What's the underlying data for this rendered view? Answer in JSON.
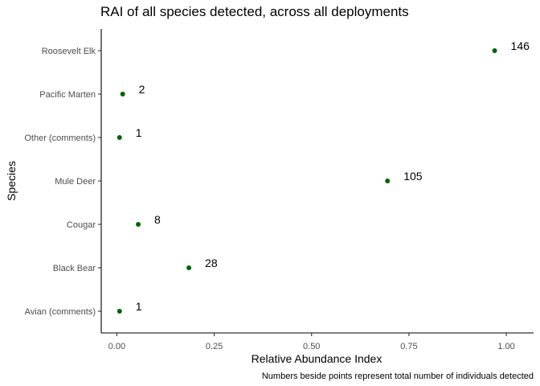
{
  "chart_data": {
    "type": "scatter",
    "title": "RAI of all species detected, across all deployments",
    "xlabel": "Relative Abundance Index",
    "ylabel": "Species",
    "caption": "Numbers beside points represent total number of individuals detected",
    "xlim": [
      -0.04,
      1.07
    ],
    "xticks": [
      0.0,
      0.25,
      0.5,
      0.75,
      1.0
    ],
    "xtick_labels": [
      "0.00",
      "0.25",
      "0.50",
      "0.75",
      "1.00"
    ],
    "grid": false,
    "point_color": "#006400",
    "categories": [
      "Avian (comments)",
      "Black Bear",
      "Cougar",
      "Mule Deer",
      "Other (comments)",
      "Pacific Marten",
      "Roosevelt Elk"
    ],
    "values": [
      0.007,
      0.185,
      0.055,
      0.695,
      0.007,
      0.015,
      0.97
    ],
    "counts": [
      "1",
      "28",
      "8",
      "105",
      "1",
      "2",
      "146"
    ]
  }
}
